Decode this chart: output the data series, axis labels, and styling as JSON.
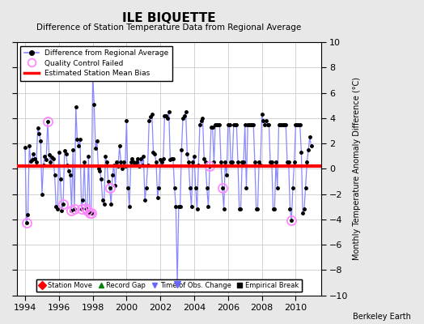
{
  "title": "ILE BIQUETTE",
  "subtitle": "Difference of Station Temperature Data from Regional Average",
  "ylabel_right": "Monthly Temperature Anomaly Difference (°C)",
  "xlim": [
    1993.5,
    2011.5
  ],
  "ylim": [
    -10,
    10
  ],
  "yticks": [
    -10,
    -8,
    -6,
    -4,
    -2,
    0,
    2,
    4,
    6,
    8,
    10
  ],
  "xticks": [
    1994,
    1996,
    1998,
    2000,
    2002,
    2004,
    2006,
    2008,
    2010
  ],
  "bias_value": 0.2,
  "background_color": "#e8e8e8",
  "plot_bg_color": "#ffffff",
  "line_color": "#8888ff",
  "bias_color": "#ff0000",
  "marker_color": "#000000",
  "qc_color": "#ff88ff",
  "obs_change_marker_color": "#6666ff",
  "time_series": [
    [
      1994.0,
      1.7
    ],
    [
      1994.083,
      -4.3
    ],
    [
      1994.167,
      -3.6
    ],
    [
      1994.25,
      1.8
    ],
    [
      1994.333,
      0.6
    ],
    [
      1994.417,
      0.7
    ],
    [
      1994.5,
      1.2
    ],
    [
      1994.583,
      0.8
    ],
    [
      1994.667,
      0.5
    ],
    [
      1994.75,
      3.2
    ],
    [
      1994.833,
      2.8
    ],
    [
      1994.917,
      2.2
    ],
    [
      1995.0,
      -2.0
    ],
    [
      1995.083,
      0.3
    ],
    [
      1995.167,
      1.0
    ],
    [
      1995.25,
      0.7
    ],
    [
      1995.333,
      3.7
    ],
    [
      1995.417,
      1.1
    ],
    [
      1995.5,
      0.5
    ],
    [
      1995.583,
      0.9
    ],
    [
      1995.667,
      0.8
    ],
    [
      1995.75,
      -0.5
    ],
    [
      1995.833,
      -3.0
    ],
    [
      1995.917,
      -3.2
    ],
    [
      1996.0,
      1.3
    ],
    [
      1996.083,
      -0.8
    ],
    [
      1996.167,
      -3.3
    ],
    [
      1996.25,
      -2.8
    ],
    [
      1996.333,
      1.4
    ],
    [
      1996.417,
      1.2
    ],
    [
      1996.5,
      0.3
    ],
    [
      1996.583,
      -0.2
    ],
    [
      1996.667,
      -0.5
    ],
    [
      1996.75,
      -3.3
    ],
    [
      1996.833,
      1.5
    ],
    [
      1996.917,
      -3.2
    ],
    [
      1997.0,
      4.9
    ],
    [
      1997.083,
      2.3
    ],
    [
      1997.167,
      1.8
    ],
    [
      1997.25,
      2.3
    ],
    [
      1997.333,
      -3.2
    ],
    [
      1997.417,
      -2.5
    ],
    [
      1997.5,
      0.5
    ],
    [
      1997.583,
      -3.1
    ],
    [
      1997.667,
      -3.3
    ],
    [
      1997.75,
      1.0
    ],
    [
      1997.833,
      -3.5
    ],
    [
      1997.917,
      -3.5
    ],
    [
      1998.0,
      7.5
    ],
    [
      1998.083,
      5.1
    ],
    [
      1998.167,
      1.6
    ],
    [
      1998.25,
      2.2
    ],
    [
      1998.333,
      0.0
    ],
    [
      1998.417,
      -0.2
    ],
    [
      1998.5,
      -0.8
    ],
    [
      1998.583,
      -2.5
    ],
    [
      1998.667,
      -2.8
    ],
    [
      1998.75,
      1.0
    ],
    [
      1998.833,
      0.5
    ],
    [
      1998.917,
      -1.0
    ],
    [
      1999.0,
      -1.5
    ],
    [
      1999.083,
      -2.8
    ],
    [
      1999.167,
      -0.5
    ],
    [
      1999.25,
      0.3
    ],
    [
      1999.333,
      -1.3
    ],
    [
      1999.417,
      0.5
    ],
    [
      1999.5,
      0.2
    ],
    [
      1999.583,
      1.8
    ],
    [
      1999.667,
      0.5
    ],
    [
      1999.75,
      0.0
    ],
    [
      1999.833,
      0.5
    ],
    [
      1999.917,
      0.2
    ],
    [
      2000.0,
      3.8
    ],
    [
      2000.083,
      -1.5
    ],
    [
      2000.167,
      -3.0
    ],
    [
      2000.25,
      0.5
    ],
    [
      2000.333,
      0.8
    ],
    [
      2000.417,
      0.5
    ],
    [
      2000.5,
      0.3
    ],
    [
      2000.583,
      0.5
    ],
    [
      2000.667,
      0.8
    ],
    [
      2000.75,
      0.2
    ],
    [
      2000.833,
      0.8
    ],
    [
      2000.917,
      0.3
    ],
    [
      2001.0,
      1.0
    ],
    [
      2001.083,
      -2.5
    ],
    [
      2001.167,
      -1.5
    ],
    [
      2001.25,
      0.3
    ],
    [
      2001.333,
      3.8
    ],
    [
      2001.417,
      4.1
    ],
    [
      2001.5,
      4.3
    ],
    [
      2001.583,
      1.3
    ],
    [
      2001.667,
      1.2
    ],
    [
      2001.75,
      0.5
    ],
    [
      2001.833,
      -2.3
    ],
    [
      2001.917,
      -1.5
    ],
    [
      2002.0,
      0.7
    ],
    [
      2002.083,
      0.5
    ],
    [
      2002.167,
      0.8
    ],
    [
      2002.25,
      4.2
    ],
    [
      2002.333,
      4.2
    ],
    [
      2002.417,
      4.0
    ],
    [
      2002.5,
      4.5
    ],
    [
      2002.583,
      0.7
    ],
    [
      2002.667,
      0.8
    ],
    [
      2002.75,
      0.8
    ],
    [
      2002.833,
      -1.5
    ],
    [
      2002.917,
      -3.0
    ],
    [
      2003.0,
      -9.1
    ],
    [
      2003.083,
      -3.0
    ],
    [
      2003.167,
      -3.0
    ],
    [
      2003.25,
      1.5
    ],
    [
      2003.333,
      4.0
    ],
    [
      2003.417,
      4.2
    ],
    [
      2003.5,
      4.5
    ],
    [
      2003.583,
      1.2
    ],
    [
      2003.667,
      0.5
    ],
    [
      2003.75,
      -1.5
    ],
    [
      2003.833,
      -3.0
    ],
    [
      2003.917,
      0.5
    ],
    [
      2004.0,
      1.0
    ],
    [
      2004.083,
      -1.5
    ],
    [
      2004.167,
      -3.2
    ],
    [
      2004.25,
      0.3
    ],
    [
      2004.333,
      3.5
    ],
    [
      2004.417,
      3.8
    ],
    [
      2004.5,
      4.0
    ],
    [
      2004.583,
      0.8
    ],
    [
      2004.667,
      0.5
    ],
    [
      2004.75,
      -1.5
    ],
    [
      2004.833,
      -3.0
    ],
    [
      2004.917,
      0.2
    ],
    [
      2005.0,
      3.3
    ],
    [
      2005.083,
      3.3
    ],
    [
      2005.167,
      0.5
    ],
    [
      2005.25,
      3.5
    ],
    [
      2005.333,
      3.5
    ],
    [
      2005.417,
      3.5
    ],
    [
      2005.5,
      3.5
    ],
    [
      2005.583,
      0.5
    ],
    [
      2005.667,
      -1.5
    ],
    [
      2005.75,
      -3.2
    ],
    [
      2005.833,
      0.5
    ],
    [
      2005.917,
      -0.5
    ],
    [
      2006.0,
      3.5
    ],
    [
      2006.083,
      3.5
    ],
    [
      2006.167,
      0.5
    ],
    [
      2006.25,
      0.5
    ],
    [
      2006.333,
      3.5
    ],
    [
      2006.417,
      3.5
    ],
    [
      2006.5,
      3.5
    ],
    [
      2006.583,
      0.5
    ],
    [
      2006.667,
      -3.2
    ],
    [
      2006.75,
      -3.2
    ],
    [
      2006.833,
      0.5
    ],
    [
      2006.917,
      0.5
    ],
    [
      2007.0,
      3.5
    ],
    [
      2007.083,
      -1.5
    ],
    [
      2007.167,
      3.5
    ],
    [
      2007.25,
      3.5
    ],
    [
      2007.333,
      3.5
    ],
    [
      2007.417,
      3.5
    ],
    [
      2007.5,
      3.5
    ],
    [
      2007.583,
      0.5
    ],
    [
      2007.667,
      -3.2
    ],
    [
      2007.75,
      -3.2
    ],
    [
      2007.833,
      0.5
    ],
    [
      2007.917,
      0.3
    ],
    [
      2008.0,
      4.3
    ],
    [
      2008.083,
      3.8
    ],
    [
      2008.167,
      3.5
    ],
    [
      2008.25,
      3.8
    ],
    [
      2008.333,
      3.5
    ],
    [
      2008.417,
      3.5
    ],
    [
      2008.5,
      0.5
    ],
    [
      2008.583,
      0.5
    ],
    [
      2008.667,
      -3.2
    ],
    [
      2008.75,
      -3.2
    ],
    [
      2008.833,
      0.5
    ],
    [
      2008.917,
      -1.5
    ],
    [
      2009.0,
      3.5
    ],
    [
      2009.083,
      3.5
    ],
    [
      2009.167,
      3.5
    ],
    [
      2009.25,
      3.5
    ],
    [
      2009.333,
      3.5
    ],
    [
      2009.417,
      3.5
    ],
    [
      2009.5,
      0.5
    ],
    [
      2009.583,
      0.5
    ],
    [
      2009.667,
      -3.2
    ],
    [
      2009.75,
      -4.1
    ],
    [
      2009.833,
      -1.5
    ],
    [
      2009.917,
      0.5
    ],
    [
      2010.0,
      3.5
    ],
    [
      2010.083,
      3.5
    ],
    [
      2010.167,
      3.5
    ],
    [
      2010.25,
      3.5
    ],
    [
      2010.333,
      1.3
    ],
    [
      2010.417,
      -3.5
    ],
    [
      2010.5,
      -3.2
    ],
    [
      2010.583,
      -1.5
    ],
    [
      2010.667,
      0.5
    ],
    [
      2010.75,
      1.5
    ],
    [
      2010.833,
      2.5
    ],
    [
      2010.917,
      1.8
    ]
  ],
  "qc_failed_points": [
    [
      1994.083,
      -4.3
    ],
    [
      1995.333,
      3.7
    ],
    [
      1996.25,
      -2.8
    ],
    [
      1996.75,
      -3.3
    ],
    [
      1996.917,
      -3.2
    ],
    [
      1997.333,
      -3.2
    ],
    [
      1997.583,
      -3.1
    ],
    [
      1997.667,
      -3.3
    ],
    [
      1997.833,
      -3.5
    ],
    [
      1997.917,
      -3.5
    ],
    [
      1998.0,
      7.5
    ],
    [
      1999.0,
      -1.5
    ],
    [
      2003.0,
      -9.1
    ],
    [
      2004.917,
      0.2
    ],
    [
      2005.667,
      -1.5
    ],
    [
      2009.75,
      -4.1
    ]
  ],
  "obs_change_x": 2003.0,
  "obs_change_y": -9.1
}
